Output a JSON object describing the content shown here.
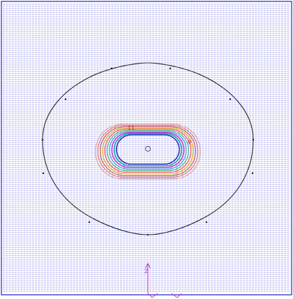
{
  "canvas": {
    "background": "#ffffff",
    "border_color": "#1f1fd0",
    "hatch_color": "#2a2ad8"
  },
  "outer_boundary": {
    "color": "#1a1a1a",
    "node_color": "#1a1a1a"
  },
  "contours": {
    "levels": [
      {
        "color": "#e09090"
      },
      {
        "color": "#d06a6a"
      },
      {
        "color": "#c94545"
      },
      {
        "color": "#d4a900"
      },
      {
        "color": "#ff3b3b"
      },
      {
        "color": "#2fb26a"
      },
      {
        "color": "#2d8ef0"
      },
      {
        "color": "#c43ad2"
      },
      {
        "color": "#16a89a"
      },
      {
        "color": "#2430c8"
      }
    ],
    "labels": [
      {
        "text": "11",
        "color": "#c9302c"
      },
      {
        "text": "9",
        "color": "#c9302c"
      }
    ]
  },
  "center_marker": {
    "icon": "circle-marker-icon",
    "color": "#444444"
  },
  "axis_triad": {
    "icon": "coordinate-axis-icon",
    "color": "#c23ab8",
    "label": "Z"
  }
}
